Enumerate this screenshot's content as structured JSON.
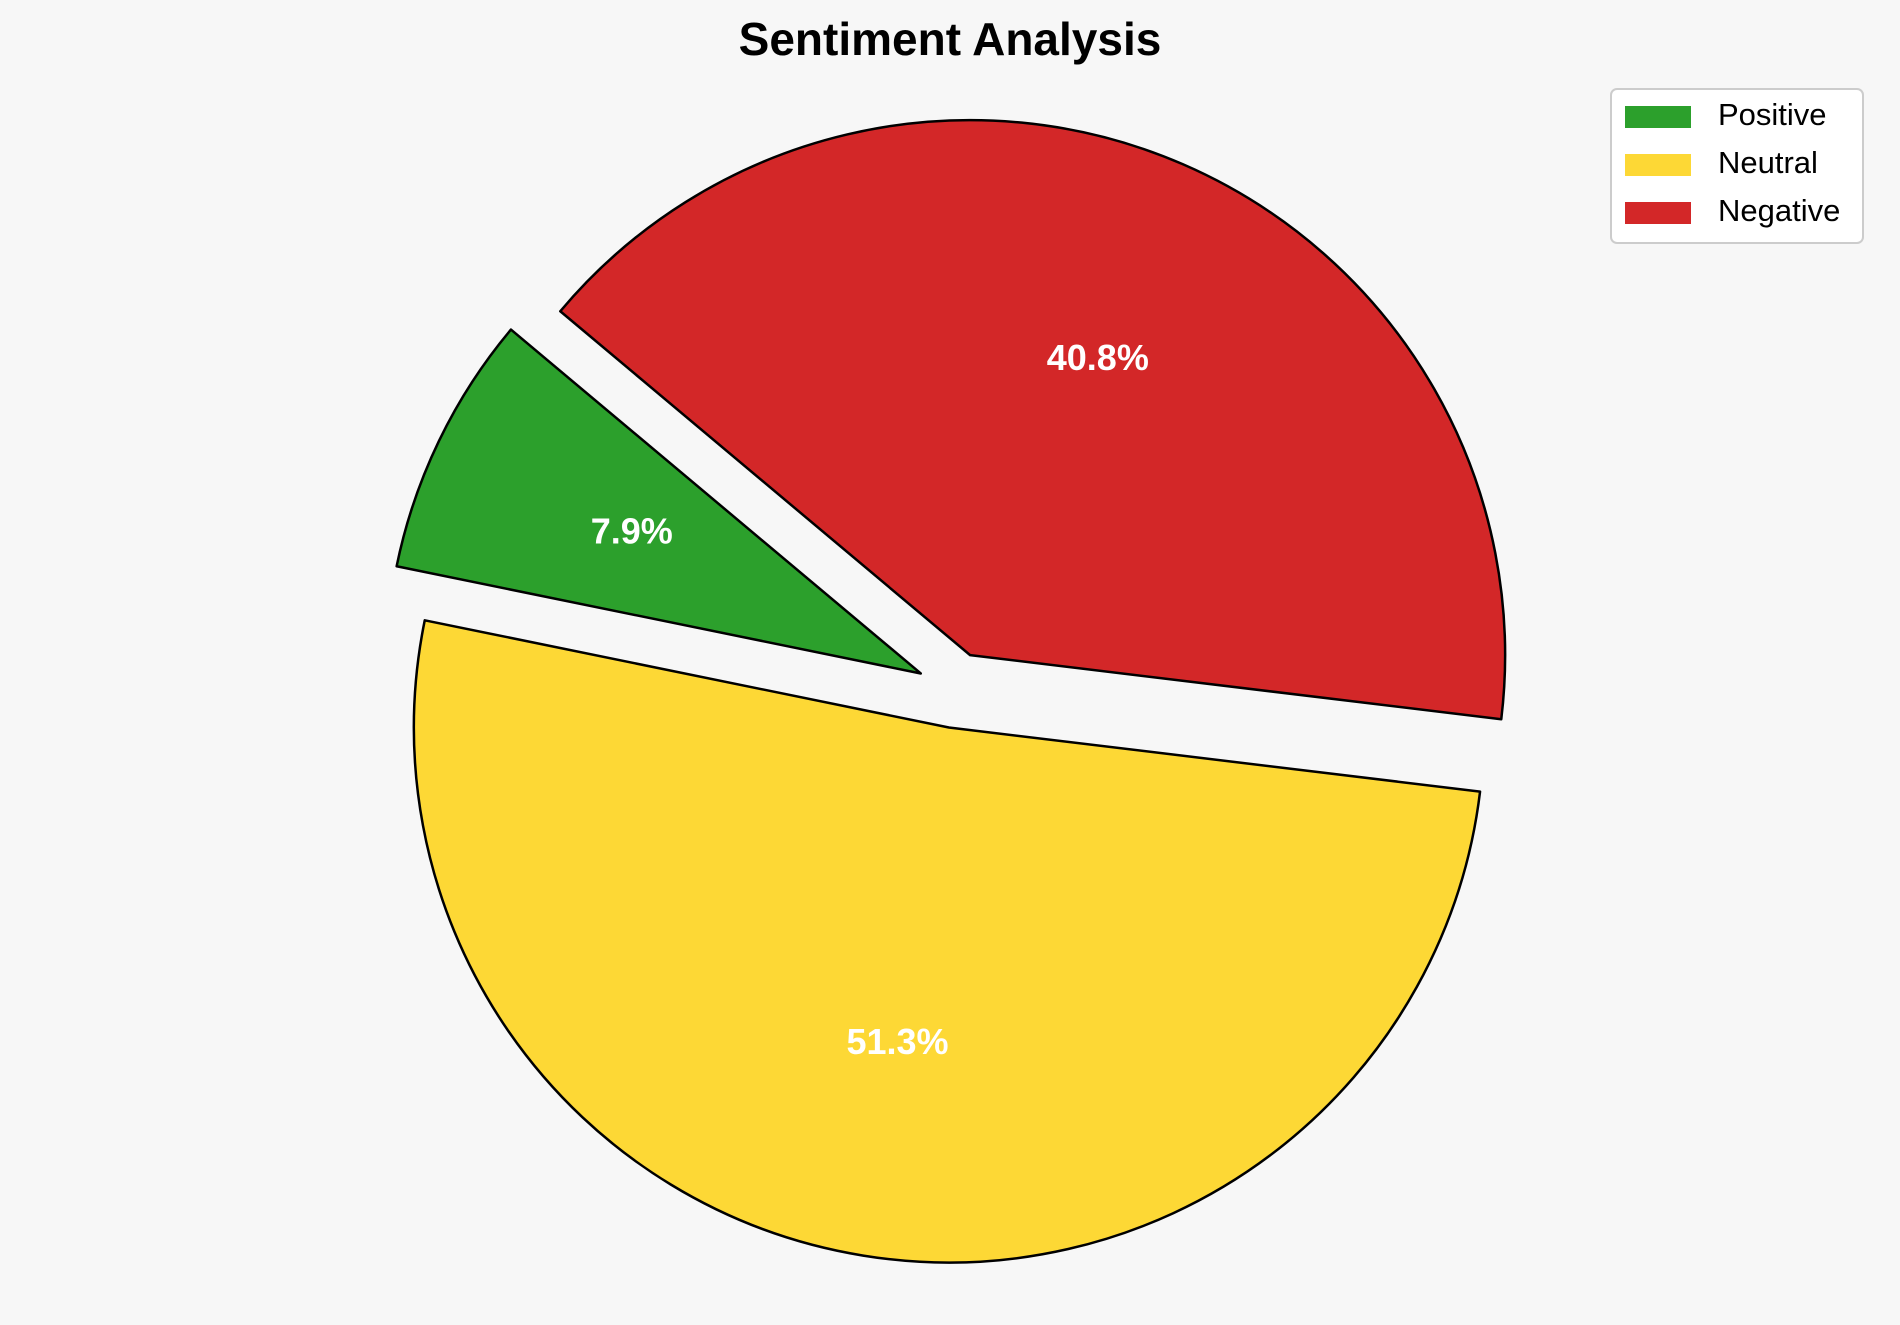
{
  "chart_data": {
    "type": "pie",
    "title": "Sentiment Analysis",
    "labels": [
      "Positive",
      "Neutral",
      "Negative"
    ],
    "values": [
      7.9,
      51.3,
      40.8
    ],
    "value_labels": [
      "7.9%",
      "51.3%",
      "40.8%"
    ],
    "colors": [
      "#2ca02c",
      "#fdd835",
      "#d32728"
    ],
    "start_angle_deg": 140,
    "direction": "counterclockwise",
    "exploded": true,
    "legend_position": "top-right",
    "background_color": "#f7f7f7",
    "edge_color": "#000000",
    "label_color": "#ffffff"
  }
}
